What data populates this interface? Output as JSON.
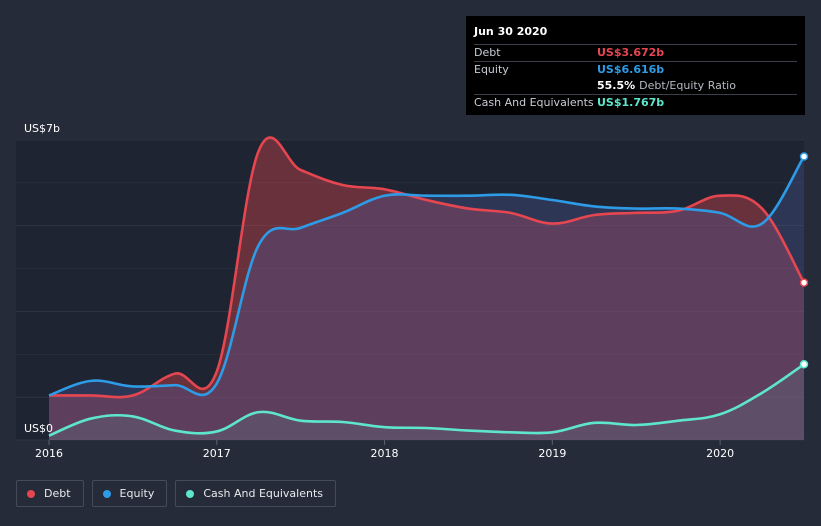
{
  "tooltip": {
    "date": "Jun 30 2020",
    "rows": [
      {
        "label": "Debt",
        "value": "US$3.672b",
        "color": "#e64650"
      },
      {
        "label": "Equity",
        "value": "US$6.616b",
        "color": "#2e9be6"
      },
      {
        "label": "",
        "value": "55.5%",
        "suffix": "Debt/Equity Ratio",
        "color": "#ffffff"
      },
      {
        "label": "Cash And Equivalents",
        "value": "US$1.767b",
        "color": "#5ee6cc"
      }
    ]
  },
  "legend": [
    {
      "label": "Debt",
      "color": "#e64650"
    },
    {
      "label": "Equity",
      "color": "#2e9be6"
    },
    {
      "label": "Cash And Equivalents",
      "color": "#5ee6cc"
    }
  ],
  "chart_data": {
    "type": "area",
    "y_top_label": "US$7b",
    "y_bottom_label": "US$0",
    "ylim": [
      0,
      7
    ],
    "xlim": [
      2016,
      2020.5
    ],
    "x_ticks": [
      "2016",
      "2017",
      "2018",
      "2019",
      "2020"
    ],
    "series": [
      {
        "name": "Debt",
        "color": "#e64650",
        "x": [
          2016,
          2016.25,
          2016.5,
          2016.75,
          2017.0,
          2017.25,
          2017.5,
          2017.75,
          2018.0,
          2018.25,
          2018.5,
          2018.75,
          2019.0,
          2019.25,
          2019.5,
          2019.75,
          2020.0,
          2020.25,
          2020.5
        ],
        "y": [
          1.04,
          1.04,
          1.04,
          1.55,
          1.6,
          6.75,
          6.3,
          5.95,
          5.85,
          5.6,
          5.4,
          5.3,
          5.05,
          5.25,
          5.3,
          5.35,
          5.7,
          5.4,
          3.672
        ]
      },
      {
        "name": "Equity",
        "color": "#2e9be6",
        "x": [
          2016,
          2016.25,
          2016.5,
          2016.75,
          2017.0,
          2017.25,
          2017.5,
          2017.75,
          2018.0,
          2018.25,
          2018.5,
          2018.75,
          2019.0,
          2019.25,
          2019.5,
          2019.75,
          2020.0,
          2020.25,
          2020.5
        ],
        "y": [
          1.04,
          1.38,
          1.25,
          1.28,
          1.32,
          4.55,
          4.95,
          5.3,
          5.7,
          5.7,
          5.7,
          5.72,
          5.6,
          5.45,
          5.4,
          5.4,
          5.3,
          5.05,
          6.616
        ]
      },
      {
        "name": "Cash And Equivalents",
        "color": "#5ee6cc",
        "x": [
          2016,
          2016.25,
          2016.5,
          2016.75,
          2017.0,
          2017.25,
          2017.5,
          2017.75,
          2018.0,
          2018.25,
          2018.5,
          2018.75,
          2019.0,
          2019.25,
          2019.5,
          2019.75,
          2020.0,
          2020.25,
          2020.5
        ],
        "y": [
          0.1,
          0.5,
          0.55,
          0.22,
          0.2,
          0.65,
          0.45,
          0.42,
          0.3,
          0.28,
          0.22,
          0.18,
          0.18,
          0.4,
          0.35,
          0.45,
          0.6,
          1.1,
          1.767
        ]
      }
    ],
    "grid": true,
    "legend_position": "bottom-left"
  }
}
